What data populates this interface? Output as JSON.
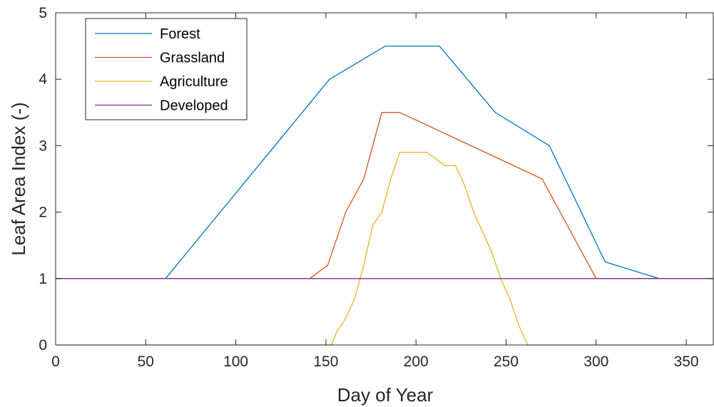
{
  "chart_data": {
    "type": "line",
    "xlabel": "Day of Year",
    "ylabel": "Leaf Area Index (-)",
    "xlim": [
      0,
      365
    ],
    "ylim": [
      0,
      5
    ],
    "xticks": [
      0,
      50,
      100,
      150,
      200,
      250,
      300,
      350
    ],
    "yticks": [
      0,
      1,
      2,
      3,
      4,
      5
    ],
    "grid": false,
    "legend_position": "top-left",
    "series": [
      {
        "name": "Forest",
        "color": "#0072BD",
        "points": [
          [
            0,
            1
          ],
          [
            61,
            1
          ],
          [
            152,
            4
          ],
          [
            183,
            4.5
          ],
          [
            213,
            4.5
          ],
          [
            244,
            3.5
          ],
          [
            274,
            3
          ],
          [
            305,
            1.25
          ],
          [
            335,
            1
          ],
          [
            365,
            1
          ]
        ]
      },
      {
        "name": "Grassland",
        "color": "#D95319",
        "points": [
          [
            0,
            1
          ],
          [
            141,
            1
          ],
          [
            151,
            1.2
          ],
          [
            161,
            2
          ],
          [
            171,
            2.5
          ],
          [
            181,
            3.5
          ],
          [
            191,
            3.5
          ],
          [
            270,
            2.5
          ],
          [
            300,
            1
          ],
          [
            365,
            1
          ]
        ]
      },
      {
        "name": "Agriculture",
        "color": "#EDB120",
        "points": [
          [
            0,
            0
          ],
          [
            153,
            0
          ],
          [
            156,
            0.2
          ],
          [
            161,
            0.4
          ],
          [
            166,
            0.7
          ],
          [
            171,
            1.2
          ],
          [
            176,
            1.8
          ],
          [
            181,
            2
          ],
          [
            186,
            2.5
          ],
          [
            191,
            2.9
          ],
          [
            206,
            2.9
          ],
          [
            216,
            2.7
          ],
          [
            222,
            2.7
          ],
          [
            227,
            2.4
          ],
          [
            232,
            2
          ],
          [
            237,
            1.7
          ],
          [
            242,
            1.4
          ],
          [
            247,
            1
          ],
          [
            252,
            0.7
          ],
          [
            257,
            0.3
          ],
          [
            262,
            0
          ],
          [
            365,
            0
          ]
        ]
      },
      {
        "name": "Developed",
        "color": "#7E2F8E",
        "points": [
          [
            0,
            1
          ],
          [
            365,
            1
          ]
        ]
      }
    ]
  }
}
